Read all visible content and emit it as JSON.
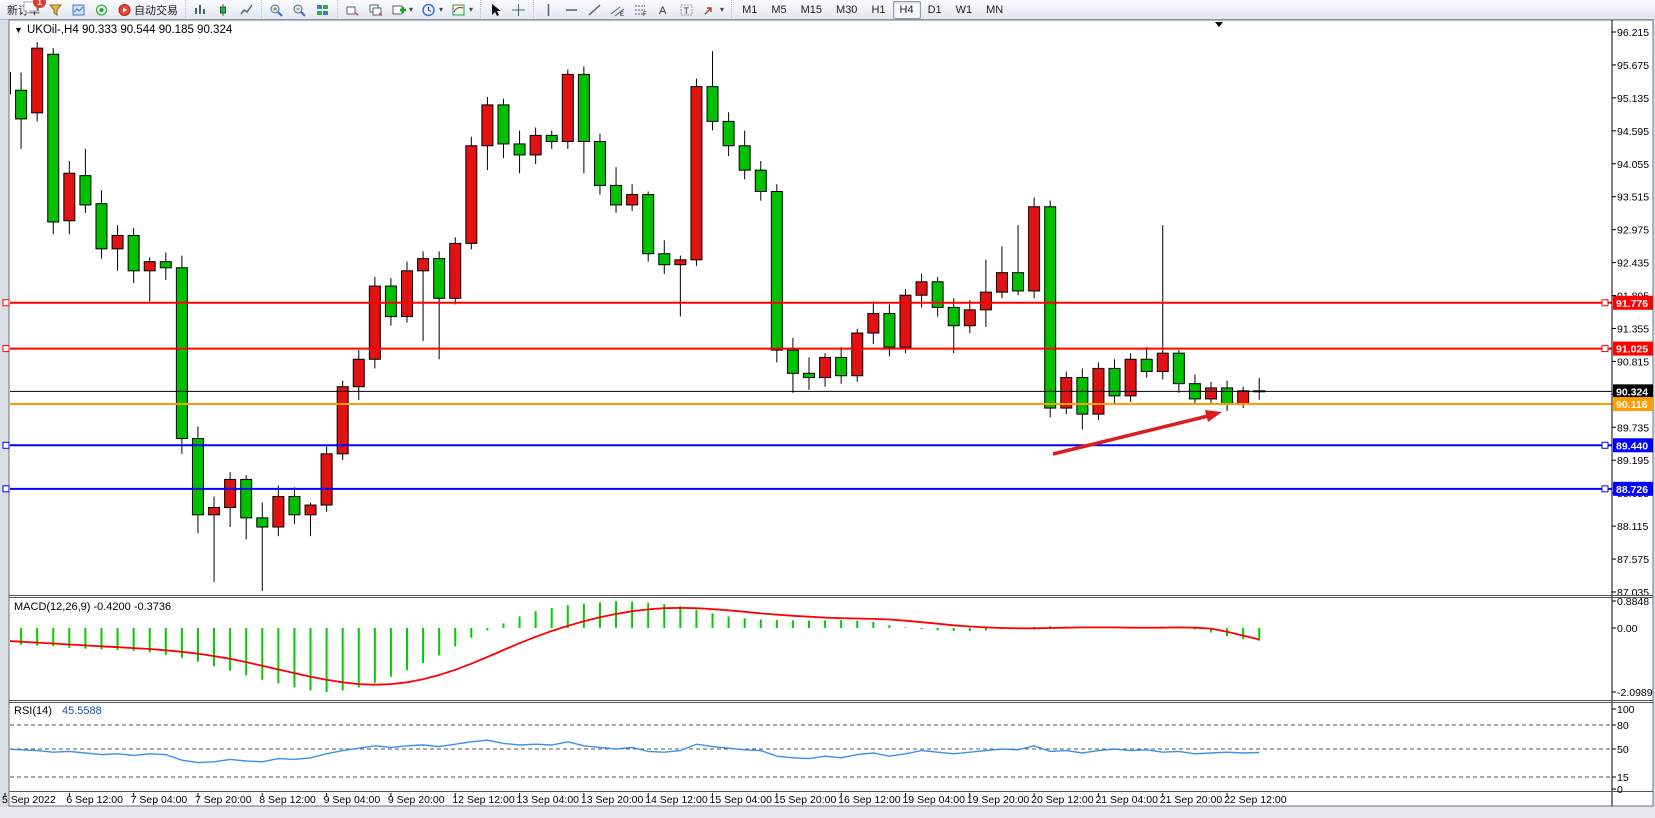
{
  "toolbar": {
    "new_order_label": "新订单",
    "auto_trading_label": "自动交易",
    "groups": [
      {
        "items": [
          {
            "name": "new-order-button",
            "type": "text",
            "bind": "new_order_label"
          },
          {
            "name": "funnel-icon",
            "type": "icon",
            "icon": "funnel"
          },
          {
            "name": "chart-window-icon",
            "type": "icon",
            "icon": "chartwin"
          },
          {
            "name": "radar-icon",
            "type": "icon",
            "icon": "radar"
          },
          {
            "name": "auto-trading-button",
            "type": "icon-text",
            "icon": "autotrade",
            "bind": "auto_trading_label"
          }
        ]
      },
      {
        "items": [
          {
            "name": "bar-chart-icon",
            "type": "icon",
            "icon": "bars"
          },
          {
            "name": "candlestick-chart-icon",
            "type": "icon",
            "icon": "candle"
          },
          {
            "name": "line-chart-icon",
            "type": "icon",
            "icon": "linechart"
          }
        ]
      },
      {
        "items": [
          {
            "name": "zoom-in-icon",
            "type": "icon",
            "icon": "zoomin"
          },
          {
            "name": "zoom-out-icon",
            "type": "icon",
            "icon": "zoomout"
          },
          {
            "name": "tile-windows-icon",
            "type": "icon",
            "icon": "tiles"
          }
        ]
      },
      {
        "items": [
          {
            "name": "new-chart-icon",
            "type": "icon",
            "icon": "cascade"
          },
          {
            "name": "profiles-icon",
            "type": "icon",
            "icon": "cascade2"
          },
          {
            "name": "add-indicator-icon",
            "type": "icon",
            "icon": "plus",
            "dropdown": true
          },
          {
            "name": "period-icon",
            "type": "icon",
            "icon": "clock",
            "dropdown": true
          },
          {
            "name": "templates-icon",
            "type": "icon",
            "icon": "template",
            "dropdown": true
          }
        ]
      },
      {
        "items": [
          {
            "name": "cursor-icon",
            "type": "icon",
            "icon": "cursor"
          },
          {
            "name": "crosshair-icon",
            "type": "icon",
            "icon": "crosshair"
          }
        ]
      },
      {
        "items": [
          {
            "name": "vertical-line-icon",
            "type": "icon",
            "icon": "vline"
          },
          {
            "name": "horizontal-line-icon",
            "type": "icon",
            "icon": "hline"
          },
          {
            "name": "trendline-icon",
            "type": "icon",
            "icon": "trend"
          },
          {
            "name": "channel-icon",
            "type": "icon",
            "icon": "channel"
          },
          {
            "name": "fibonacci-icon",
            "type": "icon",
            "icon": "fibo"
          },
          {
            "name": "text-icon",
            "type": "icon",
            "icon": "textA"
          },
          {
            "name": "text-label-icon",
            "type": "icon",
            "icon": "textT"
          },
          {
            "name": "arrows-icon",
            "type": "icon",
            "icon": "shapes",
            "dropdown": true
          }
        ]
      }
    ],
    "timeframes": [
      {
        "label": "M1",
        "active": false
      },
      {
        "label": "M5",
        "active": false
      },
      {
        "label": "M15",
        "active": false
      },
      {
        "label": "M30",
        "active": false
      },
      {
        "label": "H1",
        "active": false
      },
      {
        "label": "H4",
        "active": true
      },
      {
        "label": "D1",
        "active": false
      },
      {
        "label": "W1",
        "active": false
      },
      {
        "label": "MN",
        "active": false
      }
    ],
    "notification_badge": "1"
  },
  "chart_window": {
    "symbol_title": "UKOil-,H4",
    "ohlc_title": "90.333 90.544 90.185 90.324",
    "chart_data": {
      "type": "candlestick",
      "up_color": "#e01212",
      "down_color": "#00c000",
      "outline_color": "#000000",
      "price_axis_ticks": [
        96.215,
        95.675,
        95.135,
        94.595,
        94.055,
        93.515,
        92.975,
        92.435,
        91.895,
        91.355,
        90.815,
        90.275,
        89.735,
        89.195,
        88.655,
        88.115,
        87.575,
        87.035
      ],
      "time_axis_labels": [
        "5 Sep 2022",
        "6 Sep 12:00",
        "7 Sep 04:00",
        "7 Sep 20:00",
        "8 Sep 12:00",
        "9 Sep 04:00",
        "9 Sep 20:00",
        "12 Sep 12:00",
        "13 Sep 04:00",
        "13 Sep 20:00",
        "14 Sep 12:00",
        "15 Sep 04:00",
        "15 Sep 20:00",
        "16 Sep 12:00",
        "19 Sep 04:00",
        "19 Sep 20:00",
        "20 Sep 12:00",
        "21 Sep 04:00",
        "21 Sep 20:00",
        "22 Sep 12:00"
      ],
      "bars_per_time_tick": 4,
      "ohlc": [
        [
          95.2,
          95.8,
          94.95,
          95.55
        ],
        [
          95.26,
          95.55,
          94.3,
          94.79
        ],
        [
          94.89,
          96.05,
          94.75,
          95.95
        ],
        [
          95.85,
          95.95,
          92.9,
          93.1
        ],
        [
          93.12,
          94.1,
          92.9,
          93.9
        ],
        [
          93.86,
          94.3,
          93.25,
          93.38
        ],
        [
          93.4,
          93.62,
          92.5,
          92.66
        ],
        [
          92.66,
          93.05,
          92.3,
          92.88
        ],
        [
          92.88,
          93.0,
          92.1,
          92.3
        ],
        [
          92.3,
          92.52,
          91.8,
          92.45
        ],
        [
          92.45,
          92.6,
          92.15,
          92.35
        ],
        [
          92.35,
          92.55,
          89.3,
          89.55
        ],
        [
          89.55,
          89.75,
          88.0,
          88.3
        ],
        [
          88.3,
          88.6,
          87.2,
          88.42
        ],
        [
          88.42,
          89.0,
          88.1,
          88.88
        ],
        [
          88.88,
          88.95,
          87.9,
          88.25
        ],
        [
          88.25,
          88.5,
          87.05,
          88.1
        ],
        [
          88.1,
          88.78,
          87.95,
          88.6
        ],
        [
          88.6,
          88.75,
          88.15,
          88.3
        ],
        [
          88.3,
          88.5,
          87.95,
          88.46
        ],
        [
          88.46,
          89.42,
          88.35,
          89.3
        ],
        [
          89.3,
          90.5,
          89.2,
          90.4
        ],
        [
          90.4,
          91.0,
          90.18,
          90.85
        ],
        [
          90.85,
          92.2,
          90.7,
          92.05
        ],
        [
          92.05,
          92.18,
          91.4,
          91.55
        ],
        [
          91.55,
          92.45,
          91.45,
          92.3
        ],
        [
          92.3,
          92.62,
          91.15,
          92.5
        ],
        [
          92.5,
          92.62,
          90.85,
          91.85
        ],
        [
          91.85,
          92.85,
          91.75,
          92.75
        ],
        [
          92.75,
          94.5,
          92.65,
          94.35
        ],
        [
          94.35,
          95.15,
          93.95,
          95.02
        ],
        [
          95.02,
          95.12,
          94.15,
          94.38
        ],
        [
          94.38,
          94.6,
          93.9,
          94.2
        ],
        [
          94.2,
          94.65,
          94.05,
          94.52
        ],
        [
          94.52,
          94.6,
          94.3,
          94.42
        ],
        [
          94.42,
          95.6,
          94.3,
          95.52
        ],
        [
          95.52,
          95.65,
          93.9,
          94.42
        ],
        [
          94.42,
          94.55,
          93.55,
          93.7
        ],
        [
          93.7,
          94.0,
          93.25,
          93.38
        ],
        [
          93.38,
          93.72,
          93.28,
          93.55
        ],
        [
          93.55,
          93.6,
          92.45,
          92.58
        ],
        [
          92.58,
          92.8,
          92.25,
          92.4
        ],
        [
          92.4,
          92.55,
          91.55,
          92.48
        ],
        [
          92.48,
          95.45,
          92.38,
          95.32
        ],
        [
          95.32,
          95.9,
          94.6,
          94.75
        ],
        [
          94.75,
          94.9,
          94.18,
          94.35
        ],
        [
          94.35,
          94.6,
          93.8,
          93.95
        ],
        [
          93.95,
          94.1,
          93.45,
          93.6
        ],
        [
          93.6,
          93.72,
          90.8,
          91.0
        ],
        [
          91.0,
          91.2,
          90.3,
          90.62
        ],
        [
          90.62,
          90.88,
          90.35,
          90.55
        ],
        [
          90.55,
          90.95,
          90.4,
          90.88
        ],
        [
          90.88,
          91.05,
          90.45,
          90.58
        ],
        [
          90.58,
          91.35,
          90.48,
          91.28
        ],
        [
          91.28,
          91.8,
          91.1,
          91.6
        ],
        [
          91.6,
          91.75,
          90.9,
          91.05
        ],
        [
          91.05,
          92.0,
          90.95,
          91.9
        ],
        [
          91.9,
          92.25,
          91.7,
          92.12
        ],
        [
          92.12,
          92.2,
          91.55,
          91.7
        ],
        [
          91.7,
          91.85,
          90.95,
          91.4
        ],
        [
          91.4,
          91.82,
          91.28,
          91.66
        ],
        [
          91.66,
          92.48,
          91.38,
          91.95
        ],
        [
          91.95,
          92.7,
          91.85,
          92.27
        ],
        [
          92.27,
          93.05,
          91.9,
          91.97
        ],
        [
          91.97,
          93.5,
          91.85,
          93.35
        ],
        [
          93.35,
          93.45,
          89.9,
          90.05
        ],
        [
          90.05,
          90.65,
          89.95,
          90.55
        ],
        [
          90.55,
          90.7,
          89.7,
          89.95
        ],
        [
          89.95,
          90.8,
          89.85,
          90.7
        ],
        [
          90.7,
          90.85,
          90.1,
          90.25
        ],
        [
          90.25,
          90.95,
          90.15,
          90.85
        ],
        [
          90.85,
          91.05,
          90.55,
          90.65
        ],
        [
          90.65,
          93.05,
          90.52,
          90.95
        ],
        [
          90.95,
          91.0,
          90.3,
          90.45
        ],
        [
          90.45,
          90.6,
          90.1,
          90.2
        ],
        [
          90.2,
          90.48,
          90.12,
          90.38
        ],
        [
          90.38,
          90.5,
          90.0,
          90.12
        ],
        [
          90.12,
          90.4,
          90.05,
          90.333
        ],
        [
          90.333,
          90.544,
          90.185,
          90.324
        ]
      ],
      "horizontal_lines": [
        {
          "price": 91.776,
          "label": "91.776",
          "color": "#ff0000",
          "width": 2,
          "handles": true
        },
        {
          "price": 91.025,
          "label": "91.025",
          "color": "#ff0000",
          "width": 2,
          "handles": true
        },
        {
          "price": 90.324,
          "label": "90.324",
          "color": "#000000",
          "width": 1,
          "handles": false
        },
        {
          "price": 90.116,
          "label": "90.116",
          "color": "#ff9c00",
          "width": 2,
          "handles": false
        },
        {
          "price": 89.44,
          "label": "89.440",
          "color": "#0000ff",
          "width": 2,
          "handles": true
        },
        {
          "price": 88.726,
          "label": "88.726",
          "color": "#0000ff",
          "width": 2,
          "handles": true
        }
      ],
      "annotation_arrow": {
        "color": "#dd1c1c"
      }
    },
    "indicators": [
      {
        "name_label": "MACD(12,26,9)",
        "values_label": "-0.4200 -0.3736",
        "axis_labels": [
          "0.8848",
          "0.00",
          "-2.0989"
        ],
        "axis_values": [
          0.8848,
          0.0,
          -2.0989
        ],
        "histogram_color": "#00cc00",
        "signal_color": "#ff0000",
        "histogram": [
          -0.5,
          -0.55,
          -0.58,
          -0.6,
          -0.65,
          -0.68,
          -0.7,
          -0.72,
          -0.75,
          -0.8,
          -0.88,
          -0.98,
          -1.1,
          -1.25,
          -1.4,
          -1.55,
          -1.7,
          -1.82,
          -1.95,
          -2.05,
          -2.0989,
          -2.05,
          -1.95,
          -1.8,
          -1.6,
          -1.38,
          -1.15,
          -0.9,
          -0.6,
          -0.32,
          -0.08,
          0.15,
          0.38,
          0.55,
          0.66,
          0.75,
          0.8,
          0.84,
          0.8848,
          0.87,
          0.83,
          0.78,
          0.72,
          0.6,
          0.48,
          0.38,
          0.32,
          0.28,
          0.26,
          0.25,
          0.24,
          0.25,
          0.26,
          0.24,
          0.2,
          0.1,
          0.02,
          -0.04,
          -0.08,
          -0.1,
          -0.1,
          -0.08,
          -0.04,
          -0.02,
          0.04,
          0.06,
          0.05,
          0.03,
          0.02,
          0.01,
          0.0,
          0.02,
          0.04,
          0.02,
          -0.05,
          -0.15,
          -0.27,
          -0.36,
          -0.42
        ],
        "signal": [
          -0.42,
          -0.45,
          -0.48,
          -0.51,
          -0.54,
          -0.57,
          -0.6,
          -0.63,
          -0.66,
          -0.69,
          -0.73,
          -0.78,
          -0.84,
          -0.92,
          -1.01,
          -1.12,
          -1.24,
          -1.36,
          -1.48,
          -1.6,
          -1.7,
          -1.78,
          -1.84,
          -1.86,
          -1.84,
          -1.78,
          -1.68,
          -1.54,
          -1.37,
          -1.17,
          -0.95,
          -0.72,
          -0.5,
          -0.29,
          -0.1,
          0.07,
          0.22,
          0.35,
          0.46,
          0.55,
          0.61,
          0.65,
          0.66,
          0.65,
          0.62,
          0.58,
          0.53,
          0.48,
          0.44,
          0.4,
          0.37,
          0.34,
          0.32,
          0.31,
          0.3,
          0.28,
          0.24,
          0.19,
          0.14,
          0.09,
          0.05,
          0.02,
          0.0,
          -0.01,
          -0.01,
          0.0,
          0.01,
          0.02,
          0.02,
          0.02,
          0.01,
          0.01,
          0.01,
          0.02,
          0.01,
          -0.02,
          -0.12,
          -0.25,
          -0.3736
        ]
      },
      {
        "name_label": "RSI(14)",
        "values_label": "45.5588",
        "axis_labels": [
          "100",
          "80",
          "50",
          "15",
          "0"
        ],
        "levels": [
          80,
          50,
          15
        ],
        "line_color": "#3e8ef0",
        "values": [
          50,
          49,
          48,
          46,
          47,
          45,
          43,
          44,
          42,
          44,
          43,
          36,
          33,
          34,
          37,
          35,
          34,
          38,
          37,
          39,
          44,
          48,
          51,
          54,
          52,
          54,
          55,
          53,
          56,
          59,
          61,
          57,
          55,
          56,
          55,
          59,
          54,
          52,
          50,
          52,
          47,
          46,
          48,
          56,
          53,
          51,
          49,
          48,
          41,
          39,
          38,
          41,
          39,
          43,
          45,
          41,
          44,
          48,
          46,
          44,
          46,
          48,
          50,
          49,
          54,
          47,
          48,
          45,
          48,
          50,
          48,
          49,
          46,
          47,
          44,
          45,
          46,
          45,
          45.6
        ]
      }
    ]
  }
}
